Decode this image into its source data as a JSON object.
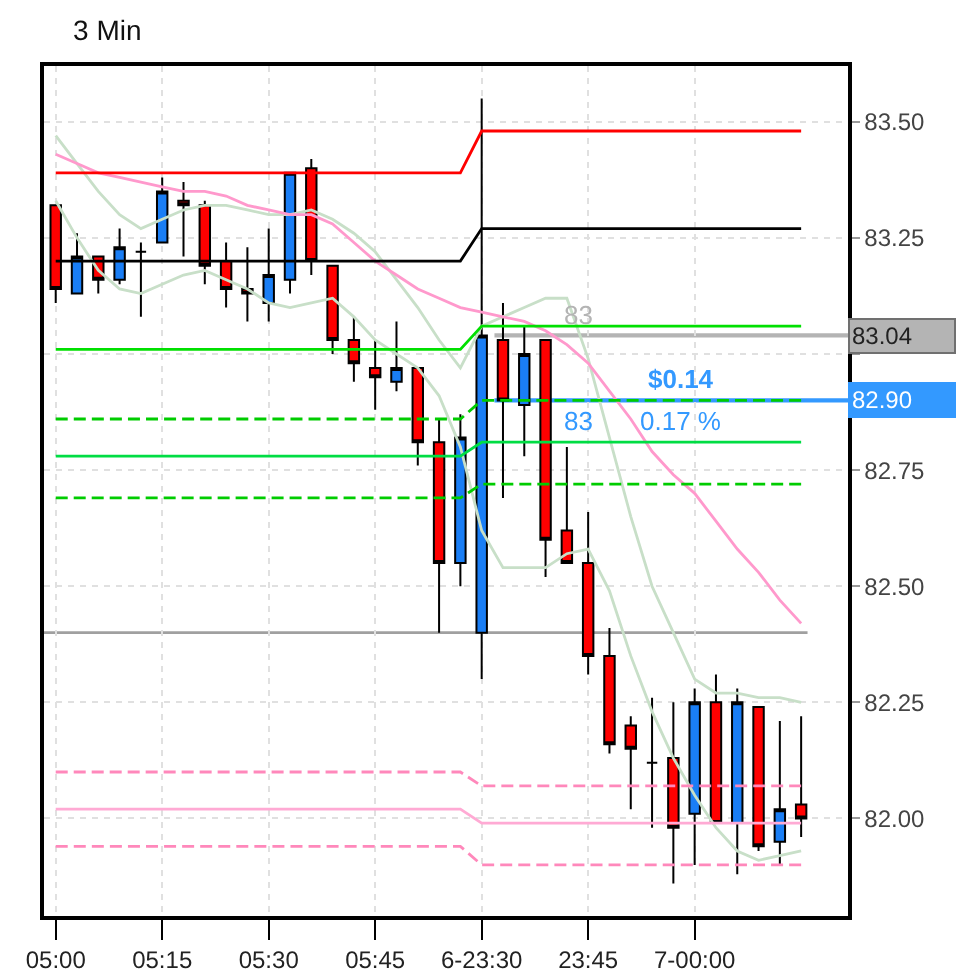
{
  "chart_data": {
    "type": "candlestick",
    "title": "3 Min",
    "categories": [
      "05:00",
      null,
      null,
      null,
      null,
      "05:15",
      null,
      null,
      null,
      null,
      "05:30",
      null,
      null,
      null,
      null,
      "05:45",
      null,
      null,
      null,
      null,
      "6-23:30",
      null,
      null,
      null,
      null,
      "23:45",
      null,
      null,
      null,
      null,
      "7-00:00",
      null,
      null,
      null,
      null,
      null
    ],
    "ohlc": [
      [
        83.32,
        83.32,
        83.11,
        83.14
      ],
      [
        83.13,
        83.26,
        83.13,
        83.21
      ],
      [
        83.21,
        83.21,
        83.13,
        83.16
      ],
      [
        83.16,
        83.27,
        83.15,
        83.23
      ],
      [
        83.22,
        83.24,
        83.08,
        83.22
      ],
      [
        83.24,
        83.38,
        83.24,
        83.35
      ],
      [
        83.33,
        83.37,
        83.21,
        83.32
      ],
      [
        83.32,
        83.33,
        83.15,
        83.19
      ],
      [
        83.2,
        83.24,
        83.1,
        83.14
      ],
      [
        83.14,
        83.23,
        83.07,
        83.13
      ],
      [
        83.11,
        83.27,
        83.07,
        83.17
      ],
      [
        83.16,
        83.39,
        83.13,
        83.39
      ],
      [
        83.4,
        83.42,
        83.17,
        83.2
      ],
      [
        83.19,
        83.19,
        83.0,
        83.03
      ],
      [
        83.03,
        83.08,
        82.94,
        82.98
      ],
      [
        82.97,
        83.03,
        82.88,
        82.95
      ],
      [
        82.94,
        83.07,
        82.92,
        82.97
      ],
      [
        82.97,
        82.97,
        82.76,
        82.81
      ],
      [
        82.81,
        82.86,
        82.4,
        82.55
      ],
      [
        82.55,
        82.87,
        82.5,
        82.82
      ],
      [
        82.4,
        83.55,
        82.3,
        83.04
      ],
      [
        83.03,
        83.11,
        82.69,
        82.9
      ],
      [
        82.89,
        83.06,
        82.78,
        83.0
      ],
      [
        83.03,
        83.03,
        82.52,
        82.6
      ],
      [
        82.62,
        82.8,
        82.55,
        82.55
      ],
      [
        82.55,
        82.66,
        82.31,
        82.35
      ],
      [
        82.35,
        82.41,
        82.14,
        82.16
      ],
      [
        82.2,
        82.22,
        82.02,
        82.15
      ],
      [
        82.12,
        82.26,
        81.98,
        82.12
      ],
      [
        82.13,
        82.25,
        81.86,
        81.98
      ],
      [
        82.01,
        82.28,
        81.9,
        82.25
      ],
      [
        82.25,
        82.31,
        81.99,
        81.99
      ],
      [
        81.99,
        82.28,
        81.88,
        82.25
      ],
      [
        82.24,
        82.24,
        81.93,
        81.94
      ],
      [
        81.95,
        82.21,
        81.9,
        82.02
      ],
      [
        82.03,
        82.22,
        81.96,
        82.0
      ]
    ],
    "series": [
      {
        "type": "line",
        "color": "#c8dfc8",
        "values": [
          83.47,
          83.41,
          83.35,
          83.3,
          83.27,
          83.29,
          83.31,
          83.32,
          83.32,
          83.31,
          83.3,
          83.3,
          83.31,
          83.29,
          83.26,
          83.22,
          83.16,
          83.1,
          83.03,
          82.97,
          83.06,
          83.08,
          83.1,
          83.12,
          83.12,
          82.99,
          82.82,
          82.65,
          82.5,
          82.4,
          82.3,
          82.27,
          82.27,
          82.26,
          82.26,
          82.25
        ]
      },
      {
        "type": "line",
        "color": "#c8dfc8",
        "values": [
          83.33,
          83.25,
          83.18,
          83.14,
          83.13,
          83.15,
          83.17,
          83.18,
          83.16,
          83.14,
          83.11,
          83.1,
          83.11,
          83.12,
          83.08,
          83.03,
          83.0,
          82.97,
          82.91,
          82.8,
          82.62,
          82.54,
          82.54,
          82.54,
          82.57,
          82.58,
          82.49,
          82.35,
          82.23,
          82.13,
          82.05,
          81.98,
          81.93,
          81.91,
          81.92,
          81.93
        ]
      },
      {
        "type": "line",
        "color": "#ff99cc",
        "values": [
          83.43,
          83.41,
          83.39,
          83.38,
          83.37,
          83.36,
          83.35,
          83.35,
          83.34,
          83.32,
          83.31,
          83.3,
          83.3,
          83.28,
          83.24,
          83.2,
          83.17,
          83.14,
          83.12,
          83.1,
          83.09,
          83.08,
          83.07,
          83.05,
          83.02,
          82.98,
          82.92,
          82.86,
          82.79,
          82.74,
          82.7,
          82.64,
          82.58,
          82.53,
          82.47,
          82.42
        ]
      },
      {
        "type": "line",
        "color": "#ff0000",
        "values": [
          83.39,
          83.39,
          83.39,
          83.39,
          83.39,
          83.39,
          83.39,
          83.39,
          83.39,
          83.39,
          83.39,
          83.39,
          83.39,
          83.39,
          83.39,
          83.39,
          83.39,
          83.39,
          83.39,
          83.39,
          83.48,
          83.48,
          83.48,
          83.48,
          83.48,
          83.48,
          83.48,
          83.48,
          83.48,
          83.48,
          83.48,
          83.48,
          83.48,
          83.48,
          83.48,
          83.48
        ]
      },
      {
        "type": "line",
        "color": "#000000",
        "values": [
          83.2,
          83.2,
          83.2,
          83.2,
          83.2,
          83.2,
          83.2,
          83.2,
          83.2,
          83.2,
          83.2,
          83.2,
          83.2,
          83.2,
          83.2,
          83.2,
          83.2,
          83.2,
          83.2,
          83.2,
          83.27,
          83.27,
          83.27,
          83.27,
          83.27,
          83.27,
          83.27,
          83.27,
          83.27,
          83.27,
          83.27,
          83.27,
          83.27,
          83.27,
          83.27,
          83.27
        ]
      },
      {
        "type": "line",
        "color": "#00e000",
        "values": [
          83.01,
          83.01,
          83.01,
          83.01,
          83.01,
          83.01,
          83.01,
          83.01,
          83.01,
          83.01,
          83.01,
          83.01,
          83.01,
          83.01,
          83.01,
          83.01,
          83.01,
          83.01,
          83.01,
          83.01,
          83.06,
          83.06,
          83.06,
          83.06,
          83.06,
          83.06,
          83.06,
          83.06,
          83.06,
          83.06,
          83.06,
          83.06,
          83.06,
          83.06,
          83.06,
          83.06
        ]
      },
      {
        "type": "line",
        "color": "#00cc00",
        "line_style": "dashed",
        "values": [
          82.86,
          82.86,
          82.86,
          82.86,
          82.86,
          82.86,
          82.86,
          82.86,
          82.86,
          82.86,
          82.86,
          82.86,
          82.86,
          82.86,
          82.86,
          82.86,
          82.86,
          82.86,
          82.86,
          82.86,
          82.9,
          82.9,
          82.9,
          82.9,
          82.9,
          82.9,
          82.9,
          82.9,
          82.9,
          82.9,
          82.9,
          82.9,
          82.9,
          82.9,
          82.9,
          82.9
        ]
      },
      {
        "type": "line",
        "color": "#00dd44",
        "values": [
          82.78,
          82.78,
          82.78,
          82.78,
          82.78,
          82.78,
          82.78,
          82.78,
          82.78,
          82.78,
          82.78,
          82.78,
          82.78,
          82.78,
          82.78,
          82.78,
          82.78,
          82.78,
          82.78,
          82.78,
          82.81,
          82.81,
          82.81,
          82.81,
          82.81,
          82.81,
          82.81,
          82.81,
          82.81,
          82.81,
          82.81,
          82.81,
          82.81,
          82.81,
          82.81,
          82.81
        ]
      },
      {
        "type": "line",
        "color": "#00cc00",
        "line_style": "dashed",
        "values": [
          82.69,
          82.69,
          82.69,
          82.69,
          82.69,
          82.69,
          82.69,
          82.69,
          82.69,
          82.69,
          82.69,
          82.69,
          82.69,
          82.69,
          82.69,
          82.69,
          82.69,
          82.69,
          82.69,
          82.69,
          82.72,
          82.72,
          82.72,
          82.72,
          82.72,
          82.72,
          82.72,
          82.72,
          82.72,
          82.72,
          82.72,
          82.72,
          82.72,
          82.72,
          82.72,
          82.72
        ]
      },
      {
        "type": "line",
        "color": "#ff88bb",
        "line_style": "dashed",
        "values": [
          82.1,
          82.1,
          82.1,
          82.1,
          82.1,
          82.1,
          82.1,
          82.1,
          82.1,
          82.1,
          82.1,
          82.1,
          82.1,
          82.1,
          82.1,
          82.1,
          82.1,
          82.1,
          82.1,
          82.1,
          82.07,
          82.07,
          82.07,
          82.07,
          82.07,
          82.07,
          82.07,
          82.07,
          82.07,
          82.07,
          82.07,
          82.07,
          82.07,
          82.07,
          82.07,
          82.07
        ]
      },
      {
        "type": "line",
        "color": "#ffaad4",
        "values": [
          82.02,
          82.02,
          82.02,
          82.02,
          82.02,
          82.02,
          82.02,
          82.02,
          82.02,
          82.02,
          82.02,
          82.02,
          82.02,
          82.02,
          82.02,
          82.02,
          82.02,
          82.02,
          82.02,
          82.02,
          81.99,
          81.99,
          81.99,
          81.99,
          81.99,
          81.99,
          81.99,
          81.99,
          81.99,
          81.99,
          81.99,
          81.99,
          81.99,
          81.99,
          81.99,
          81.99
        ]
      },
      {
        "type": "line",
        "color": "#ff88bb",
        "line_style": "dashed",
        "values": [
          81.94,
          81.94,
          81.94,
          81.94,
          81.94,
          81.94,
          81.94,
          81.94,
          81.94,
          81.94,
          81.94,
          81.94,
          81.94,
          81.94,
          81.94,
          81.94,
          81.94,
          81.94,
          81.94,
          81.94,
          81.9,
          81.9,
          81.9,
          81.9,
          81.9,
          81.9,
          81.9,
          81.9,
          81.9,
          81.9,
          81.9,
          81.9,
          81.9,
          81.9,
          81.9,
          81.9
        ]
      }
    ],
    "ref_lines": [
      {
        "axis": "y",
        "value": 82.4,
        "color": "#a0a0a0"
      },
      {
        "axis": "y",
        "value": 83.04,
        "label": "83.04",
        "color": "#b4b4b4"
      },
      {
        "axis": "y",
        "value": 82.9,
        "label": "82.90",
        "color": "#3399ff"
      }
    ],
    "annotations": [
      {
        "text": "83",
        "y": 83.04
      },
      {
        "text": "$0.14",
        "y": 82.9
      },
      {
        "text": "83",
        "y": 82.9
      },
      {
        "text": "0.17 %",
        "y": 82.9
      }
    ],
    "ylim": [
      81.79,
      83.62
    ],
    "yticks": [
      {
        "value": 82.0,
        "label": "82.00"
      },
      {
        "value": 82.25,
        "label": "82.25"
      },
      {
        "value": 82.5,
        "label": "82.50"
      },
      {
        "value": 82.75,
        "label": "82.75"
      },
      {
        "value": 83.0,
        "label": null
      },
      {
        "value": 83.25,
        "label": "83.25"
      },
      {
        "value": 83.5,
        "label": "83.50"
      }
    ],
    "grid": true,
    "marker": "none"
  }
}
